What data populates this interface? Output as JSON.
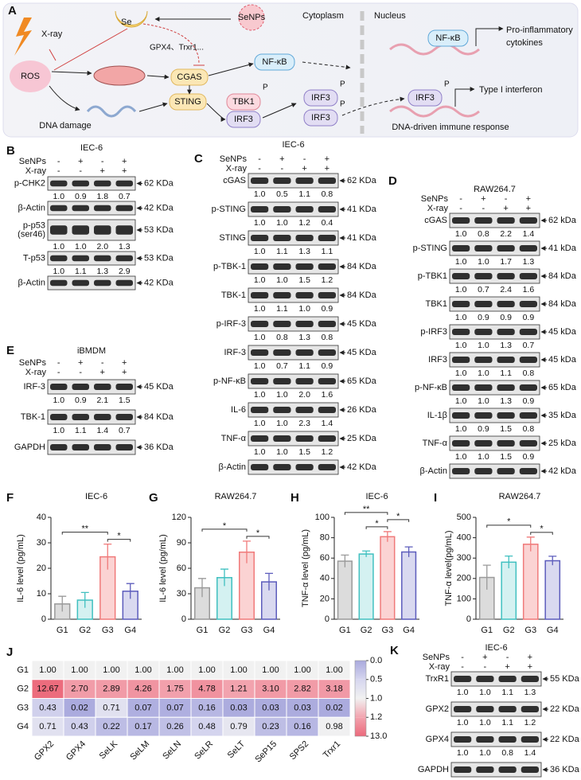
{
  "schematic": {
    "panel": "A",
    "xray": "X-ray",
    "se": "Se",
    "senps": "SeNPs",
    "cytoplasm": "Cytoplasm",
    "nucleus": "Nucleus",
    "ros": "ROS",
    "enzymes": "GPX4、Trxr1...",
    "cgas": "CGAS",
    "nfkb": "NF-κB",
    "cytokines": [
      "Pro-inflammatory",
      "cytokines"
    ],
    "sting": "STING",
    "tbk1": "TBK1",
    "irf3": "IRF3",
    "p": "P",
    "interferon": "Type I interferon",
    "dna_damage": "DNA damage",
    "dna_response": "DNA-driven immune response"
  },
  "blots": [
    {
      "panel": "B",
      "title": "IEC-6",
      "treatments": [
        {
          "name": "SeNPs",
          "signs": [
            "-",
            "+",
            "-",
            "+"
          ]
        },
        {
          "name": "X-ray",
          "signs": [
            "-",
            "-",
            "+",
            "+"
          ]
        }
      ],
      "rows": [
        {
          "label": [
            "p-CHK2"
          ],
          "size": "62 KDa",
          "quant": [
            "1.0",
            "0.9",
            "1.8",
            "0.7"
          ]
        },
        {
          "label": [
            "β-Actin"
          ],
          "size": "42 KDa"
        },
        {
          "label": [
            "p-p53",
            "(ser46)"
          ],
          "size": "53 KDa",
          "quant": [
            "1.0",
            "1.0",
            "2.0",
            "1.3"
          ]
        },
        {
          "label": [
            "T-p53"
          ],
          "size": "53 KDa",
          "quant": [
            "1.0",
            "1.1",
            "1.3",
            "2.9"
          ]
        },
        {
          "label": [
            "β-Actin"
          ],
          "size": "42 KDa"
        }
      ]
    },
    {
      "panel": "C",
      "title": "IEC-6",
      "treatments": [
        {
          "name": "SeNPs",
          "signs": [
            "-",
            "+",
            "-",
            "+"
          ]
        },
        {
          "name": "X-ray",
          "signs": [
            "-",
            "-",
            "+",
            "+"
          ]
        }
      ],
      "rows": [
        {
          "label": [
            "cGAS"
          ],
          "size": "62 KDa",
          "quant": [
            "1.0",
            "0.5",
            "1.1",
            "0.8"
          ]
        },
        {
          "label": [
            "p-STING"
          ],
          "size": "41 KDa",
          "quant": [
            "1.0",
            "1.0",
            "1.2",
            "0.4"
          ]
        },
        {
          "label": [
            "STING"
          ],
          "size": "41 KDa",
          "quant": [
            "1.0",
            "1.1",
            "1.3",
            "1.1"
          ]
        },
        {
          "label": [
            "p-TBK-1"
          ],
          "size": "84 KDa",
          "quant": [
            "1.0",
            "1.0",
            "1.5",
            "1.2"
          ]
        },
        {
          "label": [
            "TBK-1"
          ],
          "size": "84 KDa",
          "quant": [
            "1.0",
            "1.1",
            "1.0",
            "0.9"
          ]
        },
        {
          "label": [
            "p-IRF-3"
          ],
          "size": "45 KDa",
          "quant": [
            "1.0",
            "0.8",
            "1.3",
            "0.8"
          ]
        },
        {
          "label": [
            "IRF-3"
          ],
          "size": "45 KDa",
          "quant": [
            "1.0",
            "0.7",
            "1.1",
            "0.9"
          ]
        },
        {
          "label": [
            "p-NF-κB"
          ],
          "size": "65 KDa",
          "quant": [
            "1.0",
            "1.0",
            "2.0",
            "1.6"
          ]
        },
        {
          "label": [
            "IL-6"
          ],
          "size": "26 KDa",
          "quant": [
            "1.0",
            "1.0",
            "2.3",
            "1.4"
          ]
        },
        {
          "label": [
            "TNF-α"
          ],
          "size": "25 KDa",
          "quant": [
            "1.0",
            "1.0",
            "1.5",
            "1.2"
          ]
        },
        {
          "label": [
            "β-Actin"
          ],
          "size": "42 KDa"
        }
      ]
    },
    {
      "panel": "D",
      "title": "RAW264.7",
      "treatments": [
        {
          "name": "SeNPs",
          "signs": [
            "-",
            "+",
            "-",
            "+"
          ]
        },
        {
          "name": "X-ray",
          "signs": [
            "-",
            "-",
            "+",
            "+"
          ]
        }
      ],
      "rows": [
        {
          "label": [
            "cGAS"
          ],
          "size": "62 kDa",
          "quant": [
            "1.0",
            "0.8",
            "2.2",
            "1.4"
          ]
        },
        {
          "label": [
            "p-STING"
          ],
          "size": "41 kDa",
          "quant": [
            "1.0",
            "1.0",
            "1.7",
            "1.3"
          ]
        },
        {
          "label": [
            "p-TBK1"
          ],
          "size": "84 kDa",
          "quant": [
            "1.0",
            "0.7",
            "2.4",
            "1.6"
          ]
        },
        {
          "label": [
            "TBK1"
          ],
          "size": "84 kDa",
          "quant": [
            "1.0",
            "0.9",
            "0.9",
            "0.9"
          ]
        },
        {
          "label": [
            "p-IRF3"
          ],
          "size": "45 kDa",
          "quant": [
            "1.0",
            "1.0",
            "1.3",
            "0.7"
          ]
        },
        {
          "label": [
            "IRF3"
          ],
          "size": "45 kDa",
          "quant": [
            "1.0",
            "1.0",
            "1.1",
            "0.8"
          ]
        },
        {
          "label": [
            "p-NF-κB"
          ],
          "size": "65 kDa",
          "quant": [
            "1.0",
            "1.0",
            "1.3",
            "0.9"
          ]
        },
        {
          "label": [
            "IL-1β"
          ],
          "size": "35 kDa",
          "quant": [
            "1.0",
            "0.9",
            "1.5",
            "0.8"
          ]
        },
        {
          "label": [
            "TNF-α"
          ],
          "size": "25 kDa",
          "quant": [
            "1.0",
            "1.0",
            "1.5",
            "0.9"
          ]
        },
        {
          "label": [
            "β-Actin"
          ],
          "size": "42 kDa"
        }
      ]
    },
    {
      "panel": "E",
      "title": "iBMDM",
      "treatments": [
        {
          "name": "SeNPs",
          "signs": [
            "-",
            "+",
            "-",
            "+"
          ]
        },
        {
          "name": "X-ray",
          "signs": [
            "-",
            "-",
            "+",
            "+"
          ]
        }
      ],
      "rows": [
        {
          "label": [
            "IRF-3"
          ],
          "size": "45 KDa",
          "quant": [
            "1.0",
            "0.9",
            "2.1",
            "1.5"
          ]
        },
        {
          "label": [
            "TBK-1"
          ],
          "size": "84 KDa",
          "quant": [
            "1.0",
            "1.1",
            "1.4",
            "0.7"
          ]
        },
        {
          "label": [
            "GAPDH"
          ],
          "size": "36 KDa"
        }
      ]
    },
    {
      "panel": "K",
      "title": "IEC-6",
      "treatments": [
        {
          "name": "SeNPs",
          "signs": [
            "-",
            "+",
            "-",
            "+"
          ]
        },
        {
          "name": "X-ray",
          "signs": [
            "-",
            "-",
            "+",
            "+"
          ]
        }
      ],
      "rows": [
        {
          "label": [
            "TrxR1"
          ],
          "size": "55 KDa",
          "quant": [
            "1.0",
            "1.0",
            "1.1",
            "1.3"
          ]
        },
        {
          "label": [
            "GPX2"
          ],
          "size": "22 KDa",
          "quant": [
            "1.0",
            "1.0",
            "1.1",
            "1.2"
          ]
        },
        {
          "label": [
            "GPX4"
          ],
          "size": "22 KDa",
          "quant": [
            "1.0",
            "1.0",
            "0.8",
            "1.4"
          ]
        },
        {
          "label": [
            "GAPDH"
          ],
          "size": "36 KDa"
        }
      ]
    }
  ],
  "chart_data": [
    {
      "panel": "F",
      "type": "bar",
      "title": "IEC-6",
      "ylabel": "IL-6 level (pg/mL)",
      "categories": [
        "G1",
        "G2",
        "G3",
        "G4"
      ],
      "values": [
        6,
        7.5,
        24.5,
        11
      ],
      "errors": [
        3,
        3,
        5,
        3
      ],
      "colors": [
        "#dcdcdc",
        "#d4f1f1",
        "#fbd3d3",
        "#d9d9f0"
      ],
      "edge_colors": [
        "#9a9a9a",
        "#40c0c0",
        "#f07a7a",
        "#5c5cbc"
      ],
      "ylim": [
        0,
        40
      ],
      "yticks": [
        0,
        10,
        20,
        30,
        40
      ],
      "significance": [
        {
          "label": "**",
          "between": [
            "G1",
            "G3"
          ]
        },
        {
          "label": "*",
          "between": [
            "G3",
            "G4"
          ]
        }
      ]
    },
    {
      "panel": "G",
      "type": "bar",
      "title": "RAW264.7",
      "ylabel": "IL-6 level (pg/mL)",
      "categories": [
        "G1",
        "G2",
        "G3",
        "G4"
      ],
      "values": [
        37,
        49,
        79,
        44
      ],
      "errors": [
        11,
        10,
        13,
        10
      ],
      "colors": [
        "#dcdcdc",
        "#d4f1f1",
        "#fbd3d3",
        "#d9d9f0"
      ],
      "edge_colors": [
        "#9a9a9a",
        "#40c0c0",
        "#f07a7a",
        "#5c5cbc"
      ],
      "ylim": [
        0,
        120
      ],
      "yticks": [
        0,
        30,
        60,
        90,
        120
      ],
      "significance": [
        {
          "label": "*",
          "between": [
            "G1",
            "G3"
          ]
        },
        {
          "label": "*",
          "between": [
            "G3",
            "G4"
          ]
        }
      ]
    },
    {
      "panel": "H",
      "type": "bar",
      "title": "IEC-6",
      "ylabel": "TNF-α level (pg/mL)",
      "categories": [
        "G1",
        "G2",
        "G3",
        "G4"
      ],
      "values": [
        57,
        64,
        81,
        66
      ],
      "errors": [
        6,
        3,
        5,
        5
      ],
      "colors": [
        "#dcdcdc",
        "#d4f1f1",
        "#fbd3d3",
        "#d9d9f0"
      ],
      "edge_colors": [
        "#9a9a9a",
        "#40c0c0",
        "#f07a7a",
        "#5c5cbc"
      ],
      "ylim": [
        0,
        100
      ],
      "yticks": [
        0,
        20,
        40,
        60,
        80,
        100
      ],
      "significance": [
        {
          "label": "**",
          "between": [
            "G1",
            "G3"
          ]
        },
        {
          "label": "*",
          "between": [
            "G3",
            "G4"
          ]
        },
        {
          "label": "*",
          "between": [
            "G2",
            "G3"
          ]
        }
      ]
    },
    {
      "panel": "I",
      "type": "bar",
      "title": "RAW264.7",
      "ylabel": "TNF-α level(pg/mL)",
      "categories": [
        "G1",
        "G2",
        "G3",
        "G4"
      ],
      "values": [
        205,
        280,
        368,
        287
      ],
      "errors": [
        60,
        30,
        35,
        22
      ],
      "colors": [
        "#dcdcdc",
        "#d4f1f1",
        "#fbd3d3",
        "#d9d9f0"
      ],
      "edge_colors": [
        "#9a9a9a",
        "#40c0c0",
        "#f07a7a",
        "#5c5cbc"
      ],
      "ylim": [
        0,
        500
      ],
      "yticks": [
        0,
        100,
        200,
        300,
        400,
        500
      ],
      "significance": [
        {
          "label": "*",
          "between": [
            "G1",
            "G3"
          ]
        },
        {
          "label": "*",
          "between": [
            "G3",
            "G4"
          ]
        }
      ]
    },
    {
      "panel": "J",
      "type": "heatmap",
      "rows": [
        "G1",
        "G2",
        "G3",
        "G4"
      ],
      "columns": [
        "GPX2",
        "GPX4",
        "SeLK",
        "SeLM",
        "SeLN",
        "SeLR",
        "SeLT",
        "SeP15",
        "SPS2",
        "Trxr1"
      ],
      "values": [
        [
          1,
          1,
          1,
          1,
          1,
          1,
          1,
          1,
          1,
          1
        ],
        [
          12.67,
          2.7,
          2.89,
          4.26,
          1.75,
          4.78,
          1.21,
          3.1,
          2.82,
          3.18
        ],
        [
          0.43,
          0.02,
          0.71,
          0.07,
          0.07,
          0.16,
          0.03,
          0.03,
          0.03,
          0.02
        ],
        [
          0.71,
          0.43,
          0.22,
          0.17,
          0.26,
          0.48,
          0.79,
          0.23,
          0.16,
          0.98
        ]
      ],
      "value_labels": [
        [
          "1.00",
          "1.00",
          "1.00",
          "1.00",
          "1.00",
          "1.00",
          "1.00",
          "1.00",
          "1.00",
          "1.00"
        ],
        [
          "12.67",
          "2.70",
          "2.89",
          "4.26",
          "1.75",
          "4.78",
          "1.21",
          "3.10",
          "2.82",
          "3.18"
        ],
        [
          "0.43",
          "0.02",
          "0.71",
          "0.07",
          "0.07",
          "0.16",
          "0.03",
          "0.03",
          "0.03",
          "0.02"
        ],
        [
          "0.71",
          "0.43",
          "0.22",
          "0.17",
          "0.26",
          "0.48",
          "0.79",
          "0.23",
          "0.16",
          "0.98"
        ]
      ],
      "colorbar_ticks": [
        {
          "value": 0,
          "label": "0.0"
        },
        {
          "value": 0.5,
          "label": "0.5"
        },
        {
          "value": 1,
          "label": "1.0"
        },
        {
          "value": 1.2,
          "label": "1.2"
        },
        {
          "value": 13,
          "label": "13.0"
        }
      ],
      "colormap": [
        "#a9a9dd",
        "#d6d6ef",
        "#f1f1f1",
        "#f2a3ae",
        "#ec6a7c"
      ]
    }
  ]
}
